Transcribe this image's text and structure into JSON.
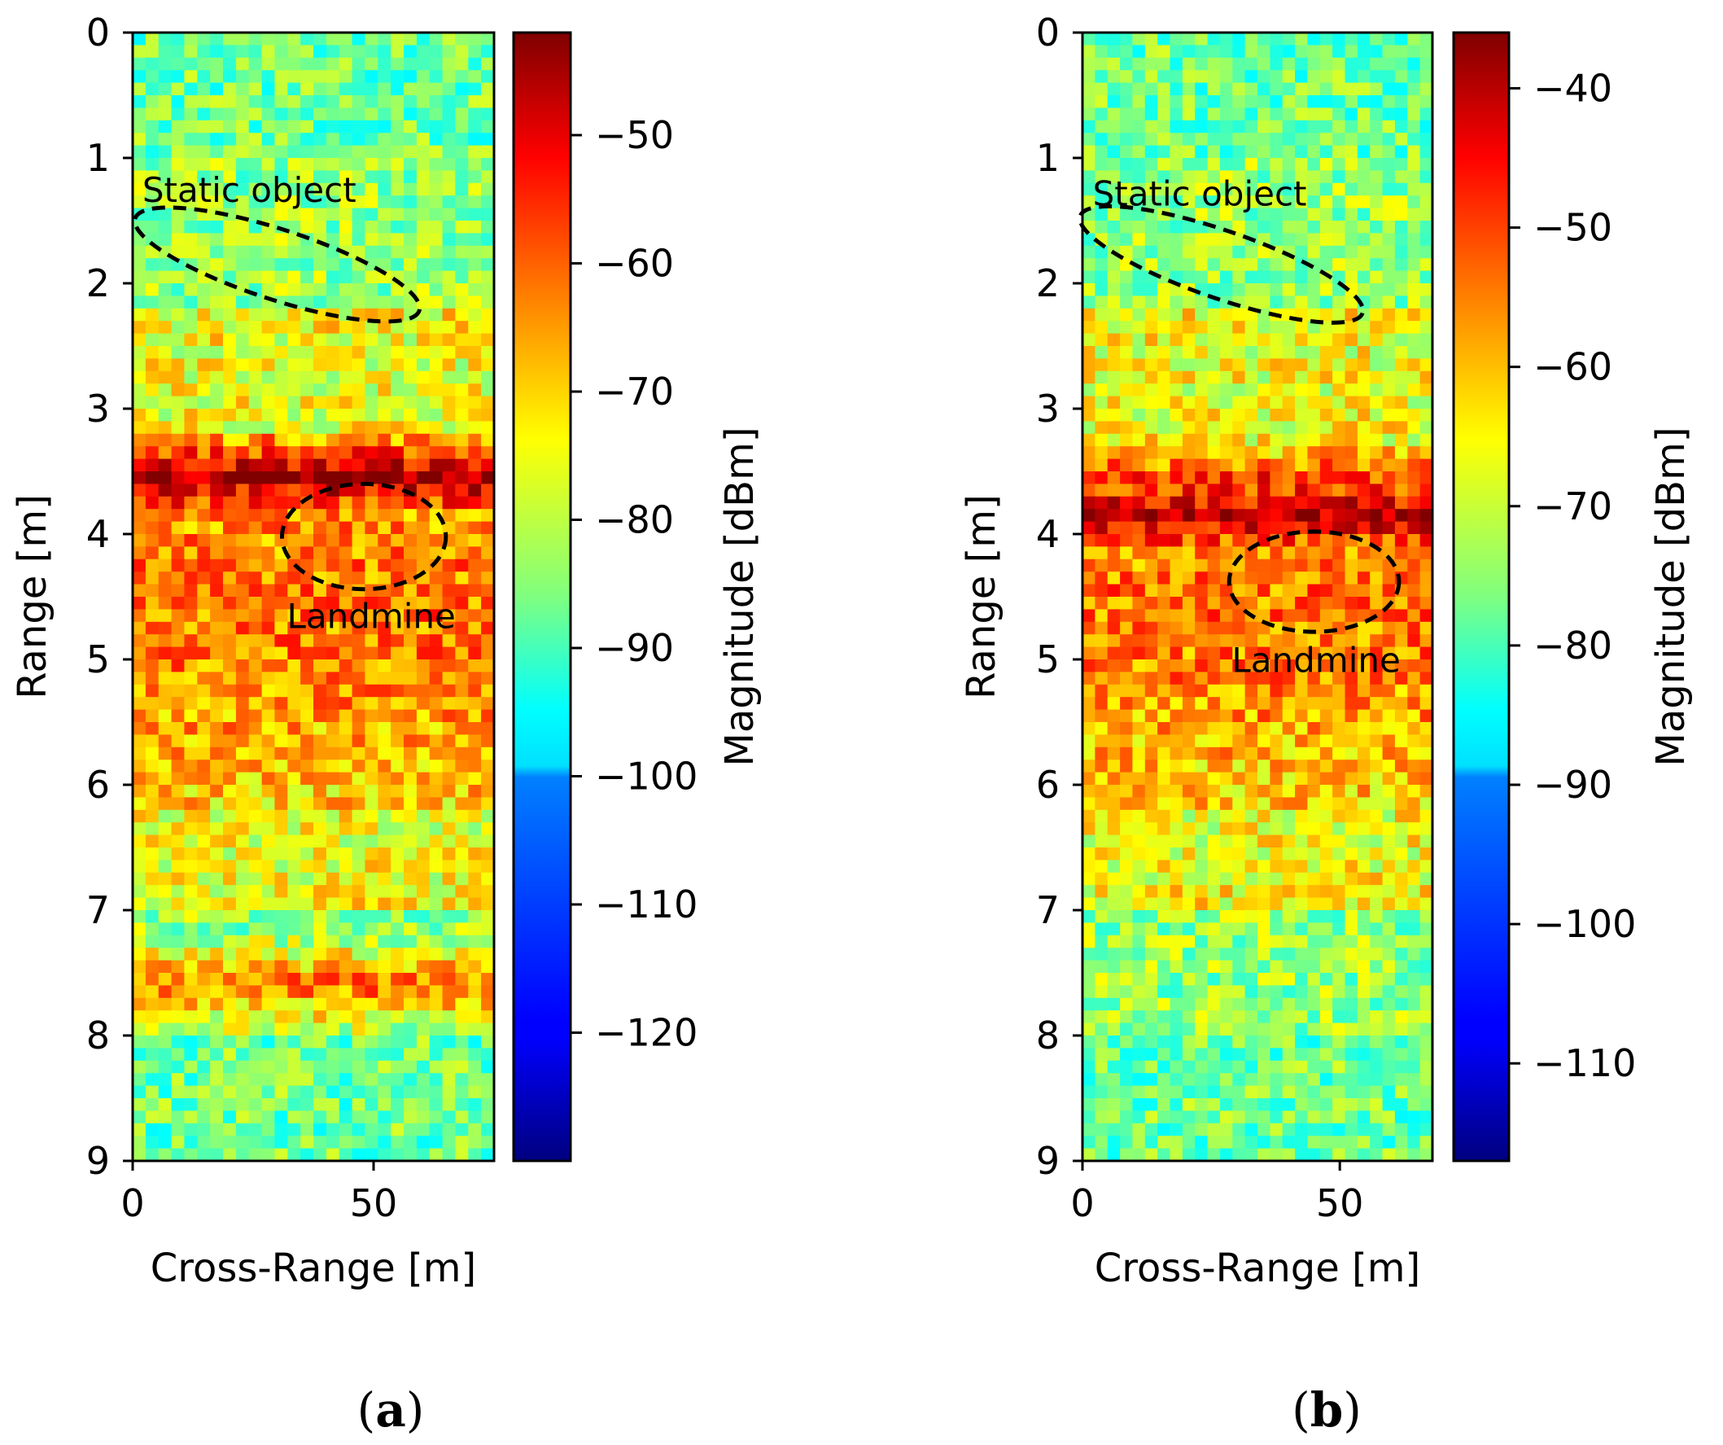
{
  "chart_data": [
    {
      "type": "heatmap",
      "panel": "a",
      "caption_letter": "a",
      "caption_open": "(",
      "caption_close": ")",
      "title": "",
      "xlabel": "Cross-Range [m]",
      "ylabel": "Range [m]",
      "colorbar_label": "Magnitude [dBm]",
      "xlim": [
        0,
        75
      ],
      "ylim": [
        9,
        0
      ],
      "xticks": [
        0,
        50
      ],
      "xtick_labels": [
        "0",
        "50"
      ],
      "yticks": [
        0,
        1,
        2,
        3,
        4,
        5,
        6,
        7,
        8,
        9
      ],
      "ytick_labels": [
        "0",
        "1",
        "2",
        "3",
        "4",
        "5",
        "6",
        "7",
        "8",
        "9"
      ],
      "clim": [
        -130,
        -42
      ],
      "cticks": [
        -50,
        -60,
        -70,
        -80,
        -90,
        -100,
        -110,
        -120
      ],
      "ctick_labels": [
        "−50",
        "−60",
        "−70",
        "−80",
        "−90",
        "−100",
        "−110",
        "−120"
      ],
      "colormap": "jet",
      "strong_bands": [
        {
          "range": 3.55,
          "level": -45
        },
        {
          "range": 7.6,
          "level": -62
        }
      ],
      "annotations": [
        {
          "text": "Static object",
          "label_x": 2,
          "label_y": 1.35,
          "shape": "rotated-ellipse",
          "cx": 30,
          "cy": 1.85,
          "rx": 31,
          "ry": 0.28,
          "angle_deg": 18
        },
        {
          "text": "Landmine",
          "label_x": 32,
          "label_y": 4.75,
          "shape": "rounded-ellipse",
          "cx": 48,
          "cy": 4.02,
          "rx": 17,
          "ry": 0.42,
          "angle_deg": 0
        }
      ]
    },
    {
      "type": "heatmap",
      "panel": "b",
      "caption_letter": "b",
      "caption_open": "(",
      "caption_close": ")",
      "title": "",
      "xlabel": "Cross-Range [m]",
      "ylabel": "Range [m]",
      "colorbar_label": "Magnitude [dBm]",
      "xlim": [
        0,
        68
      ],
      "ylim": [
        9,
        0
      ],
      "xticks": [
        0,
        50
      ],
      "xtick_labels": [
        "0",
        "50"
      ],
      "yticks": [
        0,
        1,
        2,
        3,
        4,
        5,
        6,
        7,
        8,
        9
      ],
      "ytick_labels": [
        "0",
        "1",
        "2",
        "3",
        "4",
        "5",
        "6",
        "7",
        "8",
        "9"
      ],
      "clim": [
        -117,
        -36
      ],
      "cticks": [
        -40,
        -50,
        -60,
        -70,
        -80,
        -90,
        -100,
        -110
      ],
      "ctick_labels": [
        "−40",
        "−50",
        "−60",
        "−70",
        "−80",
        "−90",
        "−100",
        "−110"
      ],
      "colormap": "jet",
      "strong_bands": [
        {
          "range": 3.6,
          "level": -48
        },
        {
          "range": 3.85,
          "level": -40
        }
      ],
      "annotations": [
        {
          "text": "Static object",
          "label_x": 2,
          "label_y": 1.38,
          "shape": "rotated-ellipse",
          "cx": 27,
          "cy": 1.85,
          "rx": 29,
          "ry": 0.27,
          "angle_deg": 19
        },
        {
          "text": "Landmine",
          "label_x": 29,
          "label_y": 5.1,
          "shape": "rounded-ellipse",
          "cx": 45,
          "cy": 4.38,
          "rx": 16.5,
          "ry": 0.4,
          "angle_deg": 0
        }
      ]
    }
  ]
}
